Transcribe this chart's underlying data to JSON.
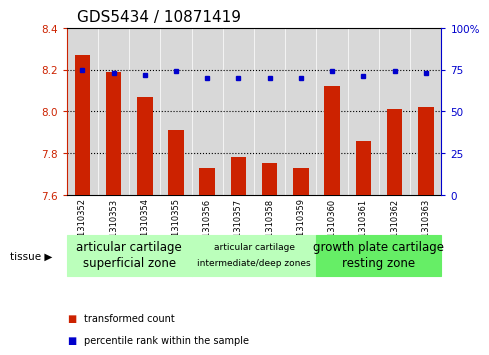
{
  "title": "GDS5434 / 10871419",
  "samples": [
    "GSM1310352",
    "GSM1310353",
    "GSM1310354",
    "GSM1310355",
    "GSM1310356",
    "GSM1310357",
    "GSM1310358",
    "GSM1310359",
    "GSM1310360",
    "GSM1310361",
    "GSM1310362",
    "GSM1310363"
  ],
  "red_values": [
    8.27,
    8.19,
    8.07,
    7.91,
    7.73,
    7.78,
    7.75,
    7.73,
    8.12,
    7.86,
    8.01,
    8.02
  ],
  "blue_values": [
    75,
    73,
    72,
    74,
    70,
    70,
    70,
    70,
    74,
    71,
    74,
    73
  ],
  "ylim_left": [
    7.6,
    8.4
  ],
  "ylim_right": [
    0,
    100
  ],
  "yticks_left": [
    7.6,
    7.8,
    8.0,
    8.2,
    8.4
  ],
  "yticks_right": [
    0,
    25,
    50,
    75,
    100
  ],
  "red_color": "#cc2200",
  "blue_color": "#0000cc",
  "bar_bottom": 7.6,
  "groups": [
    {
      "label_line1": "articular cartilage",
      "label_line2": "superficial zone",
      "start": 0,
      "end": 4,
      "color": "#bbffbb",
      "fontsize": 8.5
    },
    {
      "label_line1": "articular cartilage",
      "label_line2": "intermediate/deep zones",
      "start": 4,
      "end": 8,
      "color": "#bbffbb",
      "fontsize": 6.5
    },
    {
      "label_line1": "growth plate cartilage",
      "label_line2": "resting zone",
      "start": 8,
      "end": 12,
      "color": "#66ee66",
      "fontsize": 8.5
    }
  ],
  "tissue_label": "tissue",
  "legend_red": "transformed count",
  "legend_blue": "percentile rank within the sample",
  "col_bg_color": "#d8d8d8",
  "grid_color": "#000000",
  "title_fontsize": 11,
  "tick_fontsize": 7.5,
  "bar_width": 0.5
}
